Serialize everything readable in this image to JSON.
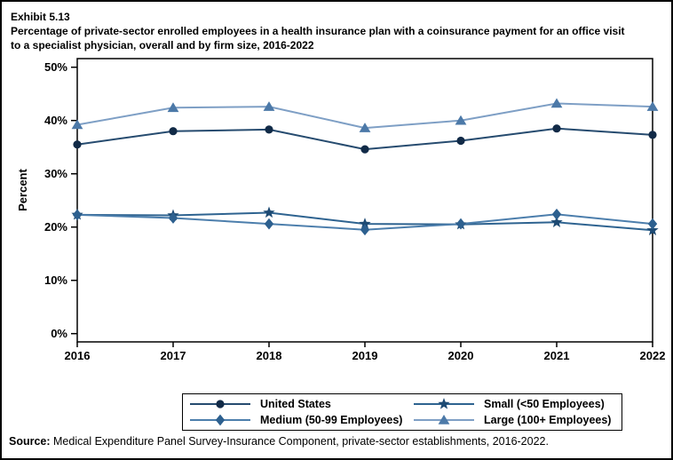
{
  "figure": {
    "exhibit_label": "Exhibit 5.13",
    "source_label": "Source:",
    "source_text": " Medical Expenditure Panel Survey-Insurance Component, private-sector establishments, 2016-2022."
  },
  "chart_data": {
    "type": "line",
    "title": "Percentage of private-sector enrolled employees in a health insurance plan with a coinsurance payment for an office visit to a specialist physician, overall and by firm size, 2016-2022",
    "xlabel": "",
    "ylabel": "Percent",
    "x": [
      2016,
      2017,
      2018,
      2019,
      2020,
      2021,
      2022
    ],
    "ylim": [
      0,
      50
    ],
    "ytick_interval": 10,
    "ytick_suffix": "%",
    "grid": false,
    "legend_position": "bottom",
    "axis_color": "#000000",
    "series": [
      {
        "name": "United States",
        "marker": "circle",
        "marker_color": "#112A47",
        "line_color": "#264B6F",
        "values": [
          35.5,
          38.0,
          38.3,
          34.6,
          36.2,
          38.5,
          37.3
        ]
      },
      {
        "name": "Small (<50 Employees)",
        "marker": "star",
        "marker_color": "#1D4A73",
        "line_color": "#2E6390",
        "values": [
          22.3,
          22.2,
          22.7,
          20.6,
          20.5,
          20.9,
          19.4
        ]
      },
      {
        "name": "Medium (50-99 Employees)",
        "marker": "diamond",
        "marker_color": "#2D608F",
        "line_color": "#4C7EAC",
        "values": [
          22.3,
          21.7,
          20.6,
          19.5,
          20.6,
          22.4,
          20.6
        ]
      },
      {
        "name": "Large (100+ Employees)",
        "marker": "triangle",
        "marker_color": "#4C79A8",
        "line_color": "#7E9FC5",
        "values": [
          39.2,
          42.4,
          42.6,
          38.6,
          40.0,
          43.2,
          42.6
        ]
      }
    ]
  }
}
